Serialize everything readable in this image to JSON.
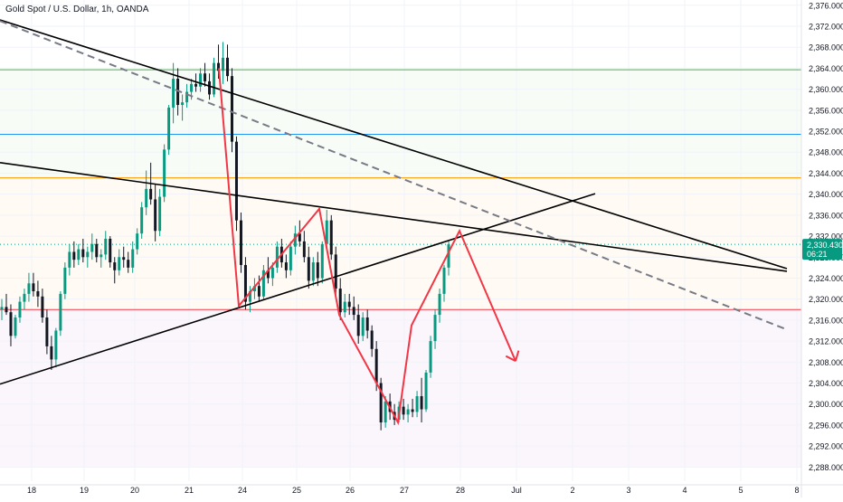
{
  "chart_data": {
    "type": "candlestick",
    "title": "Gold Spot / U.S. Dollar, 1h, OANDA",
    "y_axis": {
      "ticks": [
        2288,
        2292,
        2296,
        2300,
        2304,
        2308,
        2312,
        2316,
        2320,
        2324,
        2328,
        2332,
        2336,
        2340,
        2344,
        2348,
        2352,
        2356,
        2360,
        2364,
        2368,
        2372,
        2376
      ],
      "tick_labels": [
        "2,288.000",
        "2,292.000",
        "2,296.000",
        "2,300.000",
        "2,304.000",
        "2,308.000",
        "2,312.000",
        "2,316.000",
        "2,320.000",
        "2,324.000",
        "2,328.000",
        "2,332.000",
        "2,336.000",
        "2,340.000",
        "2,344.000",
        "2,348.000",
        "2,352.000",
        "2,356.000",
        "2,360.000",
        "2,364.000",
        "2,368.000",
        "2,372.000",
        "2,376.000"
      ],
      "range": [
        2285.3,
        2377.0
      ],
      "position": "right"
    },
    "x_axis": {
      "tick_labels": [
        "18",
        "19",
        "20",
        "21",
        "24",
        "25",
        "26",
        "27",
        "28",
        "Jul",
        "2",
        "3",
        "4",
        "5",
        "8"
      ]
    },
    "current_price": {
      "label": "2,330.430",
      "countdown": "06:21",
      "value": 2330.43,
      "color": "#089981"
    },
    "horizontal_levels": [
      {
        "value": 2363.7,
        "color": "#4caf50"
      },
      {
        "value": 2351.4,
        "color": "#2196f3"
      },
      {
        "value": 2343.1,
        "color": "#ff9800"
      },
      {
        "value": 2318.0,
        "color": "#f23645"
      }
    ],
    "zones": [
      {
        "from": 2343.1,
        "to": 2363.7,
        "color": "#4caf50"
      },
      {
        "from": 2318.0,
        "to": 2343.1,
        "color": "#ff9800"
      },
      {
        "from": 2288.0,
        "to": 2318.0,
        "color": "#9c27b0"
      }
    ],
    "trend_lines": [
      {
        "from": {
          "x": "18",
          "y": 2373.2
        },
        "to": {
          "x": "8",
          "y": 2325.8
        },
        "color": "#000000",
        "style": "solid"
      },
      {
        "from": {
          "x": "18",
          "y": 2346.0
        },
        "to": {
          "x": "8",
          "y": 2325.3
        },
        "color": "#000000",
        "style": "solid"
      },
      {
        "from": {
          "x": "18",
          "y": 2303.8
        },
        "to": {
          "x": "2",
          "y": 2340.1
        },
        "color": "#000000",
        "style": "solid"
      },
      {
        "from": {
          "x": "18",
          "y": 2373.0
        },
        "to": {
          "x": "8",
          "y": 2314.2
        },
        "color": "#787b86",
        "style": "dashed"
      }
    ],
    "projection_path": {
      "color": "#f23645",
      "points": [
        {
          "x": "21",
          "y": 2364.0
        },
        {
          "x": "24",
          "y": 2318.7
        },
        {
          "x": "25",
          "y": 2337.2
        },
        {
          "x": "26",
          "y": 2317.0
        },
        {
          "x": "27",
          "y": 2296.5
        },
        {
          "x": "27",
          "y": 2315.0
        },
        {
          "x": "28",
          "y": 2333.0
        },
        {
          "x": "Jul",
          "y": 2308.2
        }
      ]
    },
    "candles": [
      {
        "x": "18",
        "o": 2318.0,
        "h": 2320.0,
        "l": 2316.0,
        "c": 2318.5
      },
      {
        "x": "18",
        "o": 2318.5,
        "h": 2321.0,
        "l": 2317.0,
        "c": 2317.5
      },
      {
        "x": "18",
        "o": 2317.5,
        "h": 2319.0,
        "l": 2311.0,
        "c": 2313.0
      },
      {
        "x": "18",
        "o": 2313.0,
        "h": 2317.0,
        "l": 2312.5,
        "c": 2316.5
      },
      {
        "x": "18",
        "o": 2316.5,
        "h": 2320.5,
        "l": 2315.5,
        "c": 2319.5
      },
      {
        "x": "18",
        "o": 2319.5,
        "h": 2322.0,
        "l": 2318.0,
        "c": 2321.0
      },
      {
        "x": "18",
        "o": 2321.0,
        "h": 2325.0,
        "l": 2319.5,
        "c": 2323.0
      },
      {
        "x": "18",
        "o": 2323.0,
        "h": 2325.0,
        "l": 2320.5,
        "c": 2321.5
      },
      {
        "x": "18",
        "o": 2321.5,
        "h": 2323.5,
        "l": 2318.5,
        "c": 2320.5
      },
      {
        "x": "18",
        "o": 2320.5,
        "h": 2322.0,
        "l": 2315.5,
        "c": 2316.5
      },
      {
        "x": "18",
        "o": 2316.5,
        "h": 2318.0,
        "l": 2309.5,
        "c": 2311.0
      },
      {
        "x": "18",
        "o": 2311.0,
        "h": 2313.0,
        "l": 2306.5,
        "c": 2308.5
      },
      {
        "x": "19",
        "o": 2308.5,
        "h": 2314.5,
        "l": 2307.0,
        "c": 2314.0
      },
      {
        "x": "19",
        "o": 2314.0,
        "h": 2321.5,
        "l": 2313.0,
        "c": 2321.0
      },
      {
        "x": "19",
        "o": 2321.0,
        "h": 2327.0,
        "l": 2320.0,
        "c": 2326.0
      },
      {
        "x": "19",
        "o": 2326.0,
        "h": 2330.5,
        "l": 2324.5,
        "c": 2329.0
      },
      {
        "x": "19",
        "o": 2329.0,
        "h": 2331.0,
        "l": 2326.0,
        "c": 2327.5
      },
      {
        "x": "19",
        "o": 2327.5,
        "h": 2330.5,
        "l": 2326.5,
        "c": 2329.5
      },
      {
        "x": "19",
        "o": 2329.5,
        "h": 2331.5,
        "l": 2327.0,
        "c": 2328.0
      },
      {
        "x": "19",
        "o": 2328.0,
        "h": 2330.0,
        "l": 2326.0,
        "c": 2329.0
      },
      {
        "x": "19",
        "o": 2329.0,
        "h": 2332.5,
        "l": 2327.5,
        "c": 2330.5
      },
      {
        "x": "19",
        "o": 2330.5,
        "h": 2331.5,
        "l": 2327.0,
        "c": 2328.0
      },
      {
        "x": "19",
        "o": 2328.0,
        "h": 2329.5,
        "l": 2326.0,
        "c": 2328.5
      },
      {
        "x": "20",
        "o": 2328.5,
        "h": 2333.0,
        "l": 2327.5,
        "c": 2331.5
      },
      {
        "x": "20",
        "o": 2331.5,
        "h": 2332.0,
        "l": 2326.0,
        "c": 2327.0
      },
      {
        "x": "20",
        "o": 2327.0,
        "h": 2328.0,
        "l": 2323.0,
        "c": 2325.5
      },
      {
        "x": "20",
        "o": 2325.5,
        "h": 2329.5,
        "l": 2324.5,
        "c": 2328.0
      },
      {
        "x": "20",
        "o": 2328.0,
        "h": 2330.0,
        "l": 2326.0,
        "c": 2327.5
      },
      {
        "x": "20",
        "o": 2327.5,
        "h": 2329.0,
        "l": 2325.0,
        "c": 2326.0
      },
      {
        "x": "20",
        "o": 2326.0,
        "h": 2331.0,
        "l": 2325.0,
        "c": 2329.5
      },
      {
        "x": "20",
        "o": 2329.5,
        "h": 2333.5,
        "l": 2328.5,
        "c": 2332.5
      },
      {
        "x": "20",
        "o": 2332.5,
        "h": 2338.5,
        "l": 2331.5,
        "c": 2337.5
      },
      {
        "x": "20",
        "o": 2337.5,
        "h": 2344.5,
        "l": 2336.0,
        "c": 2341.0
      },
      {
        "x": "20",
        "o": 2341.0,
        "h": 2346.0,
        "l": 2338.0,
        "c": 2339.0
      },
      {
        "x": "20",
        "o": 2339.0,
        "h": 2342.0,
        "l": 2331.0,
        "c": 2333.0
      },
      {
        "x": "21",
        "o": 2333.0,
        "h": 2341.0,
        "l": 2332.0,
        "c": 2339.5
      },
      {
        "x": "21",
        "o": 2339.5,
        "h": 2349.5,
        "l": 2338.5,
        "c": 2348.5
      },
      {
        "x": "21",
        "o": 2348.5,
        "h": 2357.0,
        "l": 2347.5,
        "c": 2356.5
      },
      {
        "x": "21",
        "o": 2356.5,
        "h": 2365.0,
        "l": 2353.5,
        "c": 2362.0
      },
      {
        "x": "21",
        "o": 2362.0,
        "h": 2364.0,
        "l": 2355.0,
        "c": 2357.0
      },
      {
        "x": "21",
        "o": 2357.0,
        "h": 2359.0,
        "l": 2354.0,
        "c": 2357.5
      },
      {
        "x": "21",
        "o": 2357.5,
        "h": 2361.0,
        "l": 2356.5,
        "c": 2359.5
      },
      {
        "x": "21",
        "o": 2359.5,
        "h": 2362.0,
        "l": 2358.0,
        "c": 2361.0
      },
      {
        "x": "21",
        "o": 2361.0,
        "h": 2363.0,
        "l": 2359.5,
        "c": 2360.5
      },
      {
        "x": "21",
        "o": 2360.5,
        "h": 2364.0,
        "l": 2359.5,
        "c": 2363.0
      },
      {
        "x": "21",
        "o": 2363.0,
        "h": 2365.0,
        "l": 2360.5,
        "c": 2361.5
      },
      {
        "x": "21",
        "o": 2361.5,
        "h": 2363.0,
        "l": 2358.0,
        "c": 2359.0
      },
      {
        "x": "21",
        "o": 2359.0,
        "h": 2366.0,
        "l": 2358.5,
        "c": 2365.0
      },
      {
        "x": "21",
        "o": 2365.0,
        "h": 2368.5,
        "l": 2362.0,
        "c": 2363.5
      },
      {
        "x": "21",
        "o": 2363.5,
        "h": 2369.0,
        "l": 2361.0,
        "c": 2366.0
      },
      {
        "x": "21",
        "o": 2366.0,
        "h": 2368.5,
        "l": 2361.5,
        "c": 2362.5
      },
      {
        "x": "21",
        "o": 2362.5,
        "h": 2364.0,
        "l": 2348.0,
        "c": 2350.0
      },
      {
        "x": "24",
        "o": 2350.0,
        "h": 2351.0,
        "l": 2333.0,
        "c": 2335.0
      },
      {
        "x": "24",
        "o": 2335.0,
        "h": 2336.5,
        "l": 2325.0,
        "c": 2326.5
      },
      {
        "x": "24",
        "o": 2326.5,
        "h": 2328.0,
        "l": 2318.0,
        "c": 2319.5
      },
      {
        "x": "24",
        "o": 2319.5,
        "h": 2322.5,
        "l": 2317.5,
        "c": 2321.5
      },
      {
        "x": "24",
        "o": 2321.5,
        "h": 2324.0,
        "l": 2320.0,
        "c": 2322.5
      },
      {
        "x": "24",
        "o": 2322.5,
        "h": 2324.5,
        "l": 2319.5,
        "c": 2320.5
      },
      {
        "x": "24",
        "o": 2320.5,
        "h": 2326.5,
        "l": 2320.0,
        "c": 2325.5
      },
      {
        "x": "24",
        "o": 2325.5,
        "h": 2328.0,
        "l": 2323.0,
        "c": 2324.0
      },
      {
        "x": "24",
        "o": 2324.0,
        "h": 2327.0,
        "l": 2322.5,
        "c": 2326.0
      },
      {
        "x": "24",
        "o": 2326.0,
        "h": 2331.0,
        "l": 2325.0,
        "c": 2330.0
      },
      {
        "x": "24",
        "o": 2330.0,
        "h": 2331.5,
        "l": 2326.0,
        "c": 2327.0
      },
      {
        "x": "24",
        "o": 2327.0,
        "h": 2328.5,
        "l": 2324.0,
        "c": 2325.5
      },
      {
        "x": "25",
        "o": 2325.5,
        "h": 2331.0,
        "l": 2324.5,
        "c": 2330.0
      },
      {
        "x": "25",
        "o": 2330.0,
        "h": 2334.0,
        "l": 2328.5,
        "c": 2332.5
      },
      {
        "x": "25",
        "o": 2332.5,
        "h": 2335.0,
        "l": 2330.0,
        "c": 2331.0
      },
      {
        "x": "25",
        "o": 2331.0,
        "h": 2333.0,
        "l": 2327.0,
        "c": 2328.0
      },
      {
        "x": "25",
        "o": 2328.0,
        "h": 2330.0,
        "l": 2322.0,
        "c": 2323.5
      },
      {
        "x": "25",
        "o": 2323.5,
        "h": 2328.0,
        "l": 2322.5,
        "c": 2327.0
      },
      {
        "x": "25",
        "o": 2327.0,
        "h": 2329.0,
        "l": 2322.5,
        "c": 2324.0
      },
      {
        "x": "25",
        "o": 2324.0,
        "h": 2331.0,
        "l": 2323.0,
        "c": 2330.5
      },
      {
        "x": "25",
        "o": 2330.5,
        "h": 2337.0,
        "l": 2329.5,
        "c": 2335.0
      },
      {
        "x": "25",
        "o": 2335.0,
        "h": 2336.0,
        "l": 2327.5,
        "c": 2328.5
      },
      {
        "x": "25",
        "o": 2328.5,
        "h": 2330.0,
        "l": 2320.5,
        "c": 2322.0
      },
      {
        "x": "26",
        "o": 2322.0,
        "h": 2324.0,
        "l": 2316.0,
        "c": 2317.5
      },
      {
        "x": "26",
        "o": 2317.5,
        "h": 2321.0,
        "l": 2316.5,
        "c": 2319.5
      },
      {
        "x": "26",
        "o": 2319.5,
        "h": 2321.0,
        "l": 2317.0,
        "c": 2318.5
      },
      {
        "x": "26",
        "o": 2318.5,
        "h": 2320.5,
        "l": 2316.0,
        "c": 2317.0
      },
      {
        "x": "26",
        "o": 2317.0,
        "h": 2319.0,
        "l": 2311.5,
        "c": 2313.0
      },
      {
        "x": "26",
        "o": 2313.0,
        "h": 2317.5,
        "l": 2312.0,
        "c": 2316.5
      },
      {
        "x": "26",
        "o": 2316.5,
        "h": 2318.0,
        "l": 2312.5,
        "c": 2314.0
      },
      {
        "x": "26",
        "o": 2314.0,
        "h": 2315.0,
        "l": 2309.0,
        "c": 2310.5
      },
      {
        "x": "26",
        "o": 2310.5,
        "h": 2312.0,
        "l": 2302.5,
        "c": 2304.0
      },
      {
        "x": "26",
        "o": 2304.0,
        "h": 2305.0,
        "l": 2295.0,
        "c": 2296.5
      },
      {
        "x": "27",
        "o": 2296.5,
        "h": 2301.5,
        "l": 2295.5,
        "c": 2300.5
      },
      {
        "x": "27",
        "o": 2300.5,
        "h": 2302.0,
        "l": 2297.0,
        "c": 2298.5
      },
      {
        "x": "27",
        "o": 2298.5,
        "h": 2300.0,
        "l": 2296.0,
        "c": 2297.0
      },
      {
        "x": "27",
        "o": 2297.0,
        "h": 2300.5,
        "l": 2296.5,
        "c": 2299.5
      },
      {
        "x": "27",
        "o": 2299.5,
        "h": 2301.0,
        "l": 2297.0,
        "c": 2298.0
      },
      {
        "x": "27",
        "o": 2298.0,
        "h": 2300.0,
        "l": 2296.5,
        "c": 2299.0
      },
      {
        "x": "27",
        "o": 2299.0,
        "h": 2301.0,
        "l": 2297.5,
        "c": 2298.5
      },
      {
        "x": "27",
        "o": 2298.5,
        "h": 2302.5,
        "l": 2297.5,
        "c": 2301.5
      },
      {
        "x": "27",
        "o": 2301.5,
        "h": 2305.0,
        "l": 2296.5,
        "c": 2299.0
      },
      {
        "x": "27",
        "o": 2299.0,
        "h": 2306.5,
        "l": 2298.5,
        "c": 2306.0
      },
      {
        "x": "27",
        "o": 2306.0,
        "h": 2313.0,
        "l": 2305.0,
        "c": 2312.0
      },
      {
        "x": "27",
        "o": 2312.0,
        "h": 2318.0,
        "l": 2310.5,
        "c": 2317.0
      },
      {
        "x": "27",
        "o": 2317.0,
        "h": 2322.0,
        "l": 2315.5,
        "c": 2321.0
      },
      {
        "x": "27",
        "o": 2321.0,
        "h": 2326.5,
        "l": 2319.5,
        "c": 2326.0
      },
      {
        "x": "27",
        "o": 2326.0,
        "h": 2331.0,
        "l": 2324.5,
        "c": 2330.43
      }
    ],
    "colors": {
      "up": "#089981",
      "down": "#131722"
    }
  }
}
